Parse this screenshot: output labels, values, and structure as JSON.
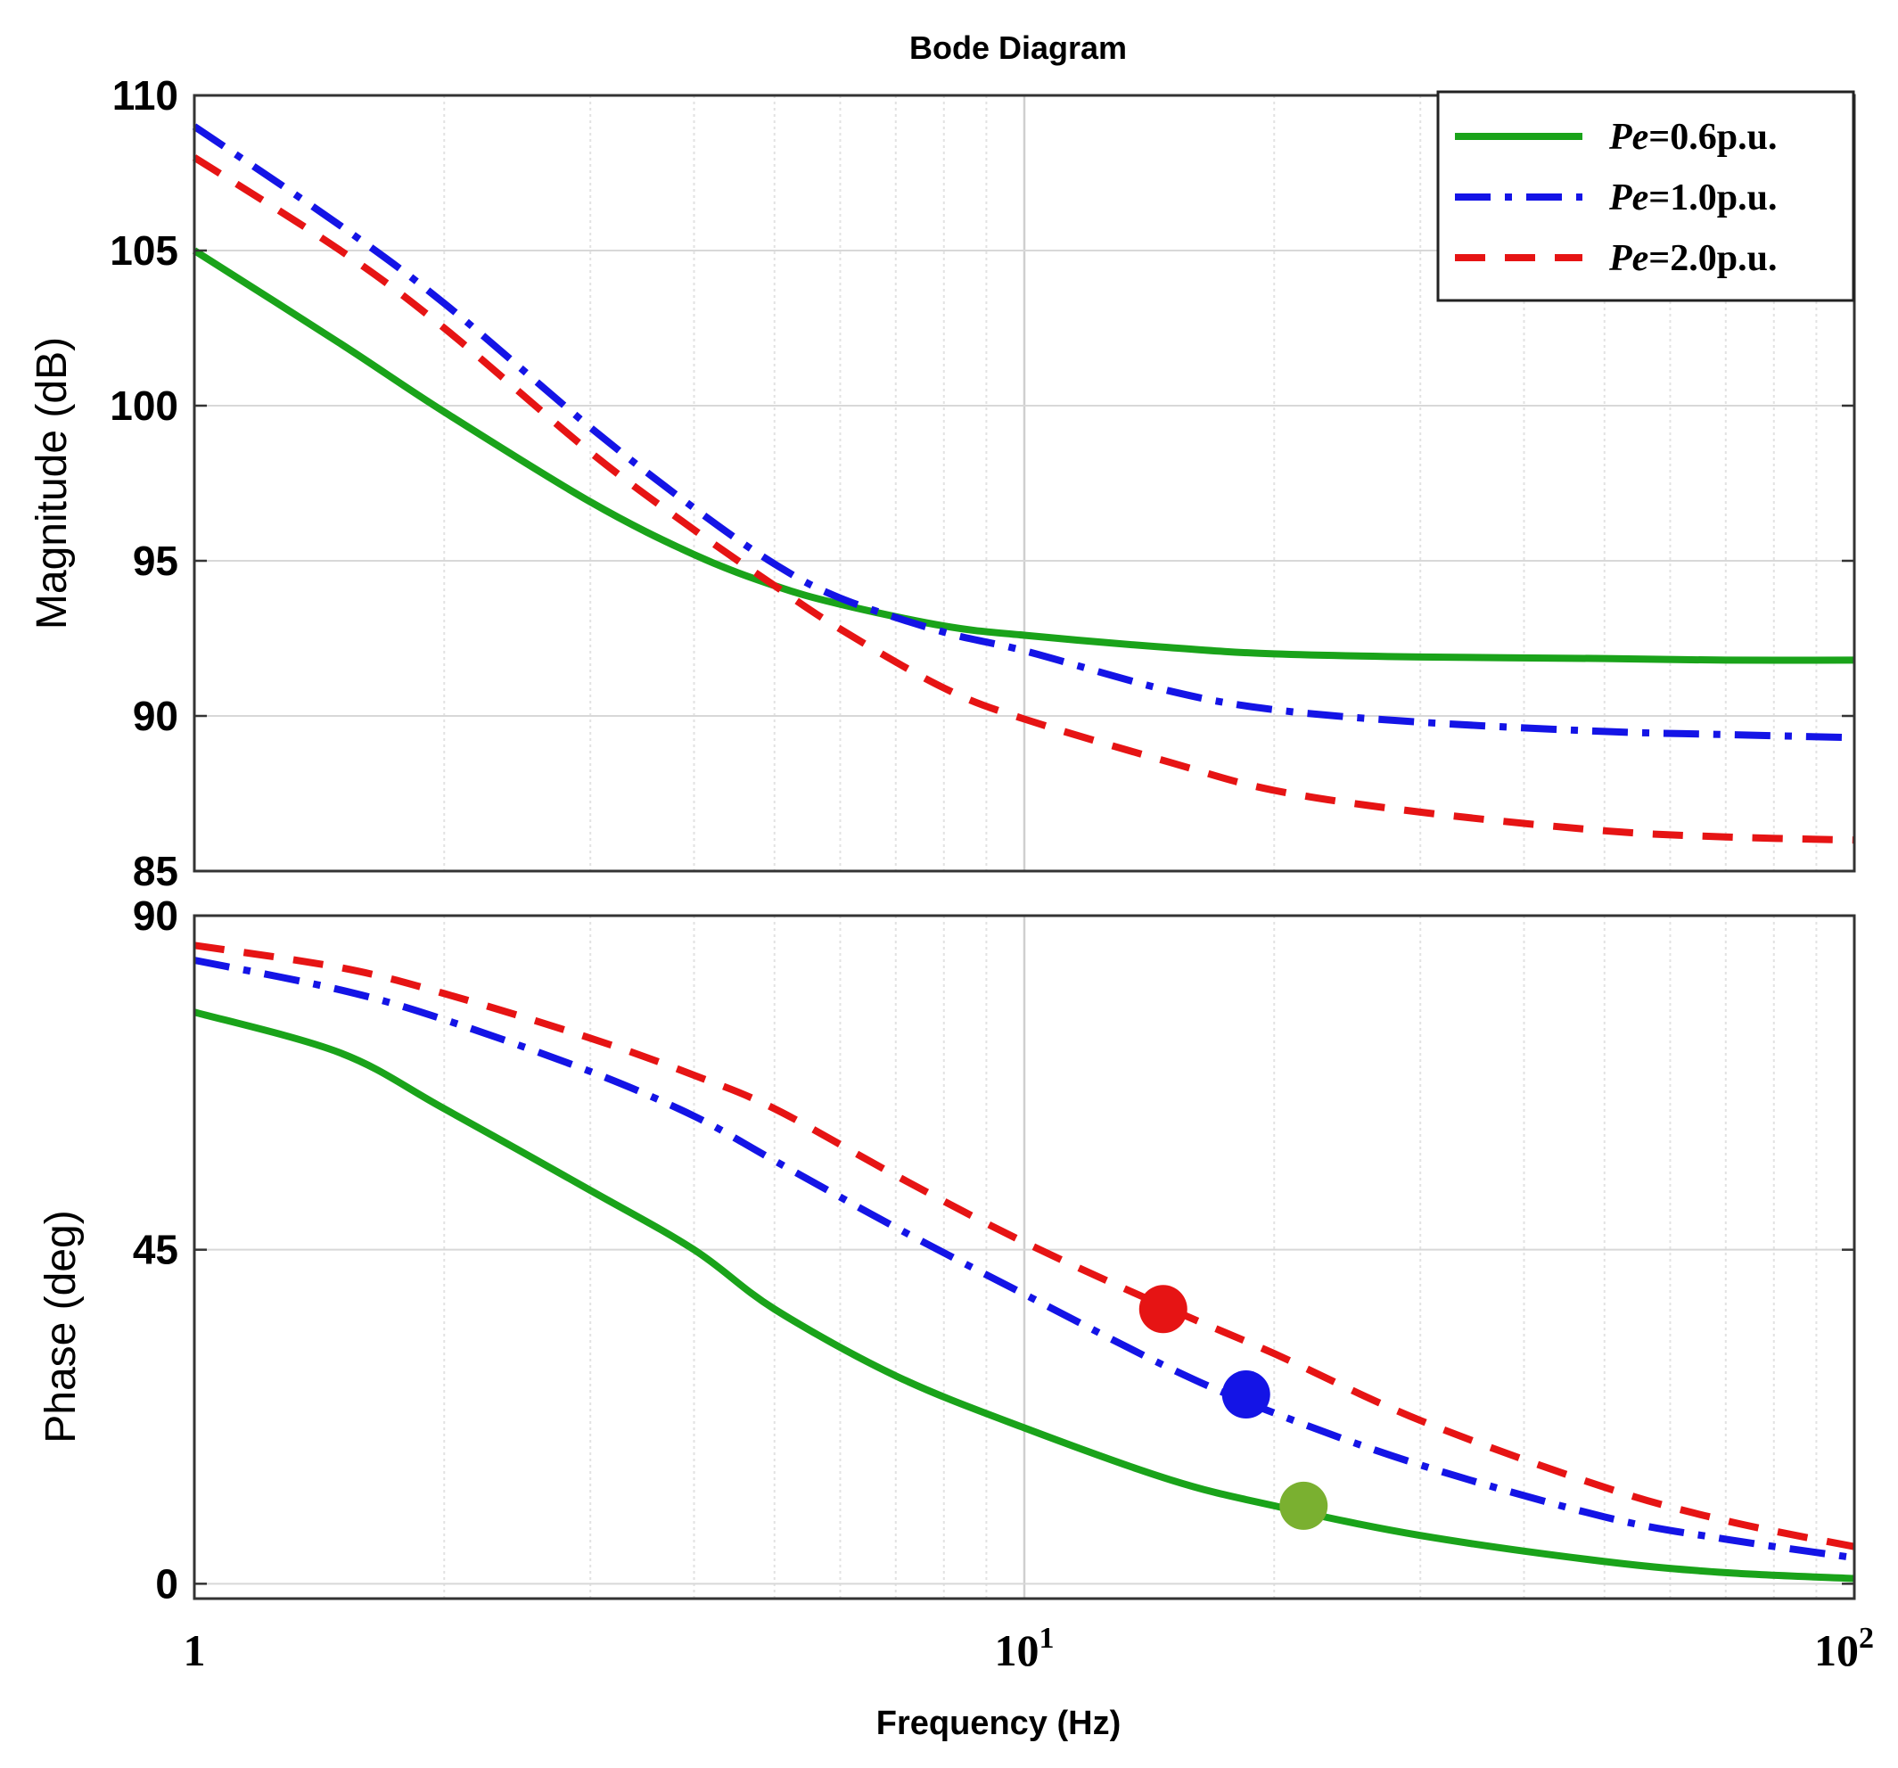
{
  "chart_data": {
    "type": "line",
    "title": "Bode Diagram",
    "xlabel": "Frequency (Hz)",
    "xscale": "log",
    "xlim": [
      1,
      100
    ],
    "x_tick_labels": [
      {
        "value": 1,
        "base": "1",
        "exp": ""
      },
      {
        "value": 10,
        "base": "10",
        "exp": "1"
      },
      {
        "value": 100,
        "base": "10",
        "exp": "2"
      }
    ],
    "legend": {
      "location": "top-right",
      "entries": [
        {
          "name_italic": "Pe",
          "name_rest": "=0.6p.u.",
          "color": "#1aa31a",
          "style": "solid"
        },
        {
          "name_italic": "Pe",
          "name_rest": "=1.0p.u.",
          "color": "#1414e6",
          "style": "dashdot"
        },
        {
          "name_italic": "Pe",
          "name_rest": "=2.0p.u.",
          "color": "#e61414",
          "style": "dashed"
        }
      ]
    },
    "magnitude": {
      "ylabel": "Magnitude (dB)",
      "ylim": [
        85,
        110
      ],
      "yticks": [
        85,
        90,
        95,
        100,
        105,
        110
      ],
      "grid": true,
      "x": [
        1,
        1.5,
        2,
        3,
        4,
        5,
        6,
        8,
        10,
        15,
        20,
        30,
        50,
        70,
        100
      ],
      "series": [
        {
          "name": "Pe=0.6p.u.",
          "values": [
            105,
            102.0,
            99.8,
            96.9,
            95.2,
            94.2,
            93.6,
            92.9,
            92.6,
            92.2,
            92.0,
            91.9,
            91.85,
            91.8,
            91.8
          ]
        },
        {
          "name": "Pe=1.0p.u.",
          "values": [
            109,
            105.8,
            103.3,
            99.3,
            96.7,
            94.9,
            93.8,
            92.7,
            92.1,
            90.8,
            90.2,
            89.8,
            89.5,
            89.4,
            89.3
          ]
        },
        {
          "name": "Pe=2.0p.u.",
          "values": [
            108,
            105.0,
            102.5,
            98.5,
            96.0,
            94.2,
            92.8,
            90.9,
            89.9,
            88.5,
            87.6,
            86.9,
            86.3,
            86.1,
            86.0
          ]
        }
      ]
    },
    "phase": {
      "ylabel": "Phase (deg)",
      "ylim": [
        -2,
        90
      ],
      "yticks": [
        0,
        45,
        90
      ],
      "grid": true,
      "x": [
        1,
        1.5,
        2,
        3,
        4,
        5,
        7,
        10,
        15,
        20,
        30,
        50,
        70,
        100
      ],
      "series": [
        {
          "name": "Pe=0.6p.u.",
          "values": [
            77,
            71.5,
            64,
            53,
            45,
            37,
            28,
            21,
            14,
            10.5,
            6.5,
            3,
            1.5,
            0.7
          ]
        },
        {
          "name": "Pe=1.0p.u.",
          "values": [
            84,
            80,
            76,
            69,
            63,
            57,
            48,
            39,
            29,
            23,
            16,
            9,
            6,
            3.5
          ]
        },
        {
          "name": "Pe=2.0p.u.",
          "values": [
            86,
            83,
            79.5,
            73.5,
            68.5,
            64,
            55,
            46,
            37,
            31,
            22,
            13,
            8.5,
            5
          ]
        }
      ],
      "markers": [
        {
          "series": "Pe=2.0p.u.",
          "x": 14.7,
          "y": 37,
          "color": "#e61414"
        },
        {
          "series": "Pe=1.0p.u.",
          "x": 18.5,
          "y": 25.5,
          "color": "#1414e6"
        },
        {
          "series": "Pe=0.6p.u.",
          "x": 21.7,
          "y": 10.5,
          "color": "#7ab030"
        }
      ]
    }
  }
}
